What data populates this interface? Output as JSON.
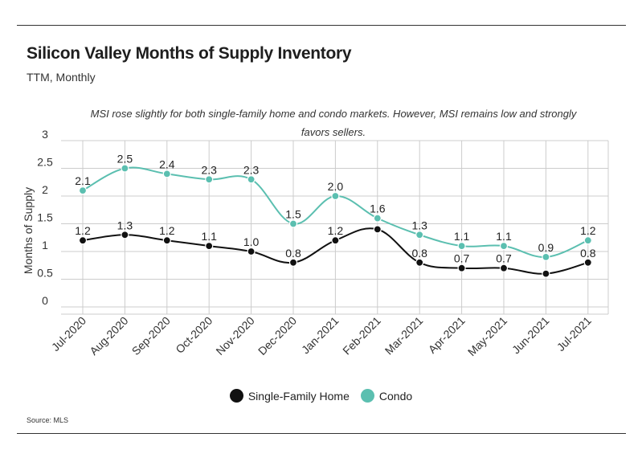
{
  "header": {
    "title": "Silicon Valley Months of Supply Inventory",
    "subtitle": "TTM, Monthly"
  },
  "annotation": "MSI rose slightly for both single-family home and condo markets. However, MSI remains low and strongly favors sellers.",
  "source": "Source:  MLS",
  "colors": {
    "single_family": "#111111",
    "condo": "#5bbfb0",
    "grid": "#cccccc"
  },
  "chart_data": {
    "type": "line",
    "title": "Silicon Valley Months of Supply Inventory",
    "subtitle": "TTM, Monthly",
    "xlabel": "",
    "ylabel": "Months of Supply",
    "ylim": [
      0,
      3
    ],
    "yticks": [
      0,
      0.5,
      1,
      1.5,
      2,
      2.5,
      3
    ],
    "ytick_labels": [
      "0",
      "0.5",
      "1",
      "1.5",
      "2",
      "2.5",
      "3"
    ],
    "grid": true,
    "legend_position": "bottom-center",
    "categories": [
      "Jul-2020",
      "Aug-2020",
      "Sep-2020",
      "Oct-2020",
      "Nov-2020",
      "Dec-2020",
      "Jan-2021",
      "Feb-2021",
      "Mar-2021",
      "Apr-2021",
      "May-2021",
      "Jun-2021",
      "Jul-2021"
    ],
    "series": [
      {
        "name": "Single-Family Home",
        "values": [
          1.2,
          1.3,
          1.2,
          1.1,
          1.0,
          0.8,
          1.2,
          1.4,
          0.8,
          0.7,
          0.7,
          0.6,
          0.8
        ],
        "labels": [
          "1.2",
          "1.3",
          "1.2",
          "1.1",
          "1.0",
          "0.8",
          "1.2",
          "",
          "0.8",
          "0.7",
          "0.7",
          "",
          "0.8"
        ]
      },
      {
        "name": "Condo",
        "values": [
          2.1,
          2.5,
          2.4,
          2.3,
          2.3,
          1.5,
          2.0,
          1.6,
          1.3,
          1.1,
          1.1,
          0.9,
          1.2
        ],
        "labels": [
          "2.1",
          "2.5",
          "2.4",
          "2.3",
          "2.3",
          "1.5",
          "2.0",
          "1.6",
          "1.3",
          "1.1",
          "1.1",
          "0.9",
          "1.2"
        ]
      }
    ]
  }
}
